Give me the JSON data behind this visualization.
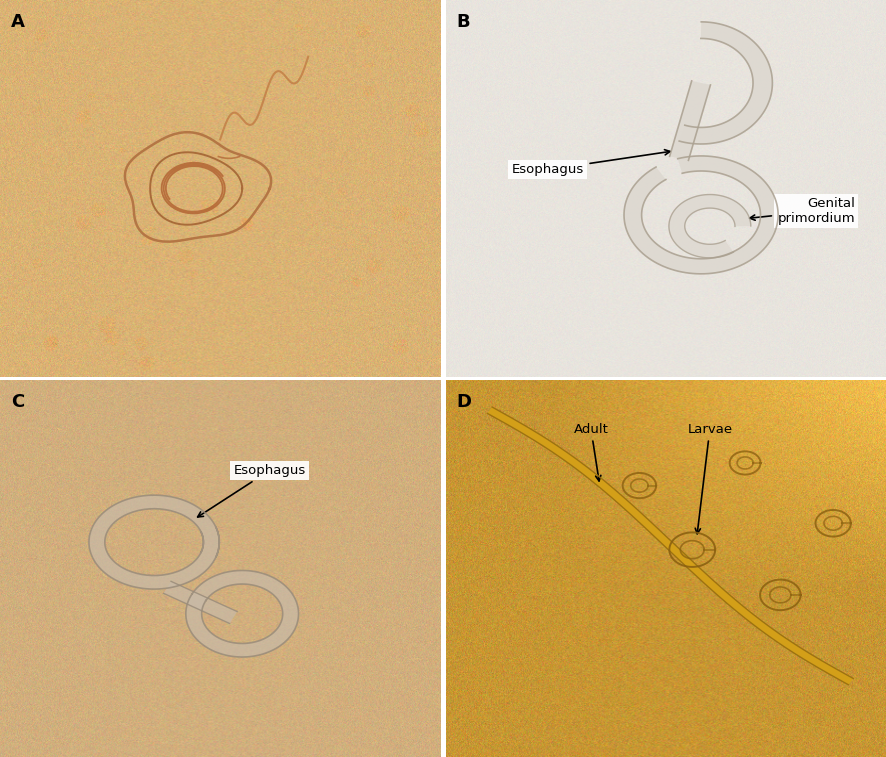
{
  "figure_width": 8.86,
  "figure_height": 7.57,
  "dpi": 100,
  "background_color": "#ffffff",
  "panel_labels": [
    "A",
    "B",
    "C",
    "D"
  ],
  "panel_label_fontsize": 13,
  "panel_label_fontweight": "bold",
  "panel_label_color": "#000000",
  "panel_A_bg": [
    0.855,
    0.7,
    0.455
  ],
  "panel_B_bg": [
    0.91,
    0.895,
    0.87
  ],
  "panel_C_bg": [
    0.82,
    0.685,
    0.49
  ],
  "panel_D_bg": [
    0.78,
    0.59,
    0.2
  ],
  "noise_sigma_A": 0.035,
  "noise_sigma_B": 0.012,
  "noise_sigma_C": 0.03,
  "noise_sigma_D": 0.045,
  "worm_color_A": "#c07840",
  "worm_color_B": "#b0a898",
  "worm_color_C": "#a89880",
  "worm_color_D_adult": "#c8920a",
  "worm_color_D_larvae": "#a07820"
}
